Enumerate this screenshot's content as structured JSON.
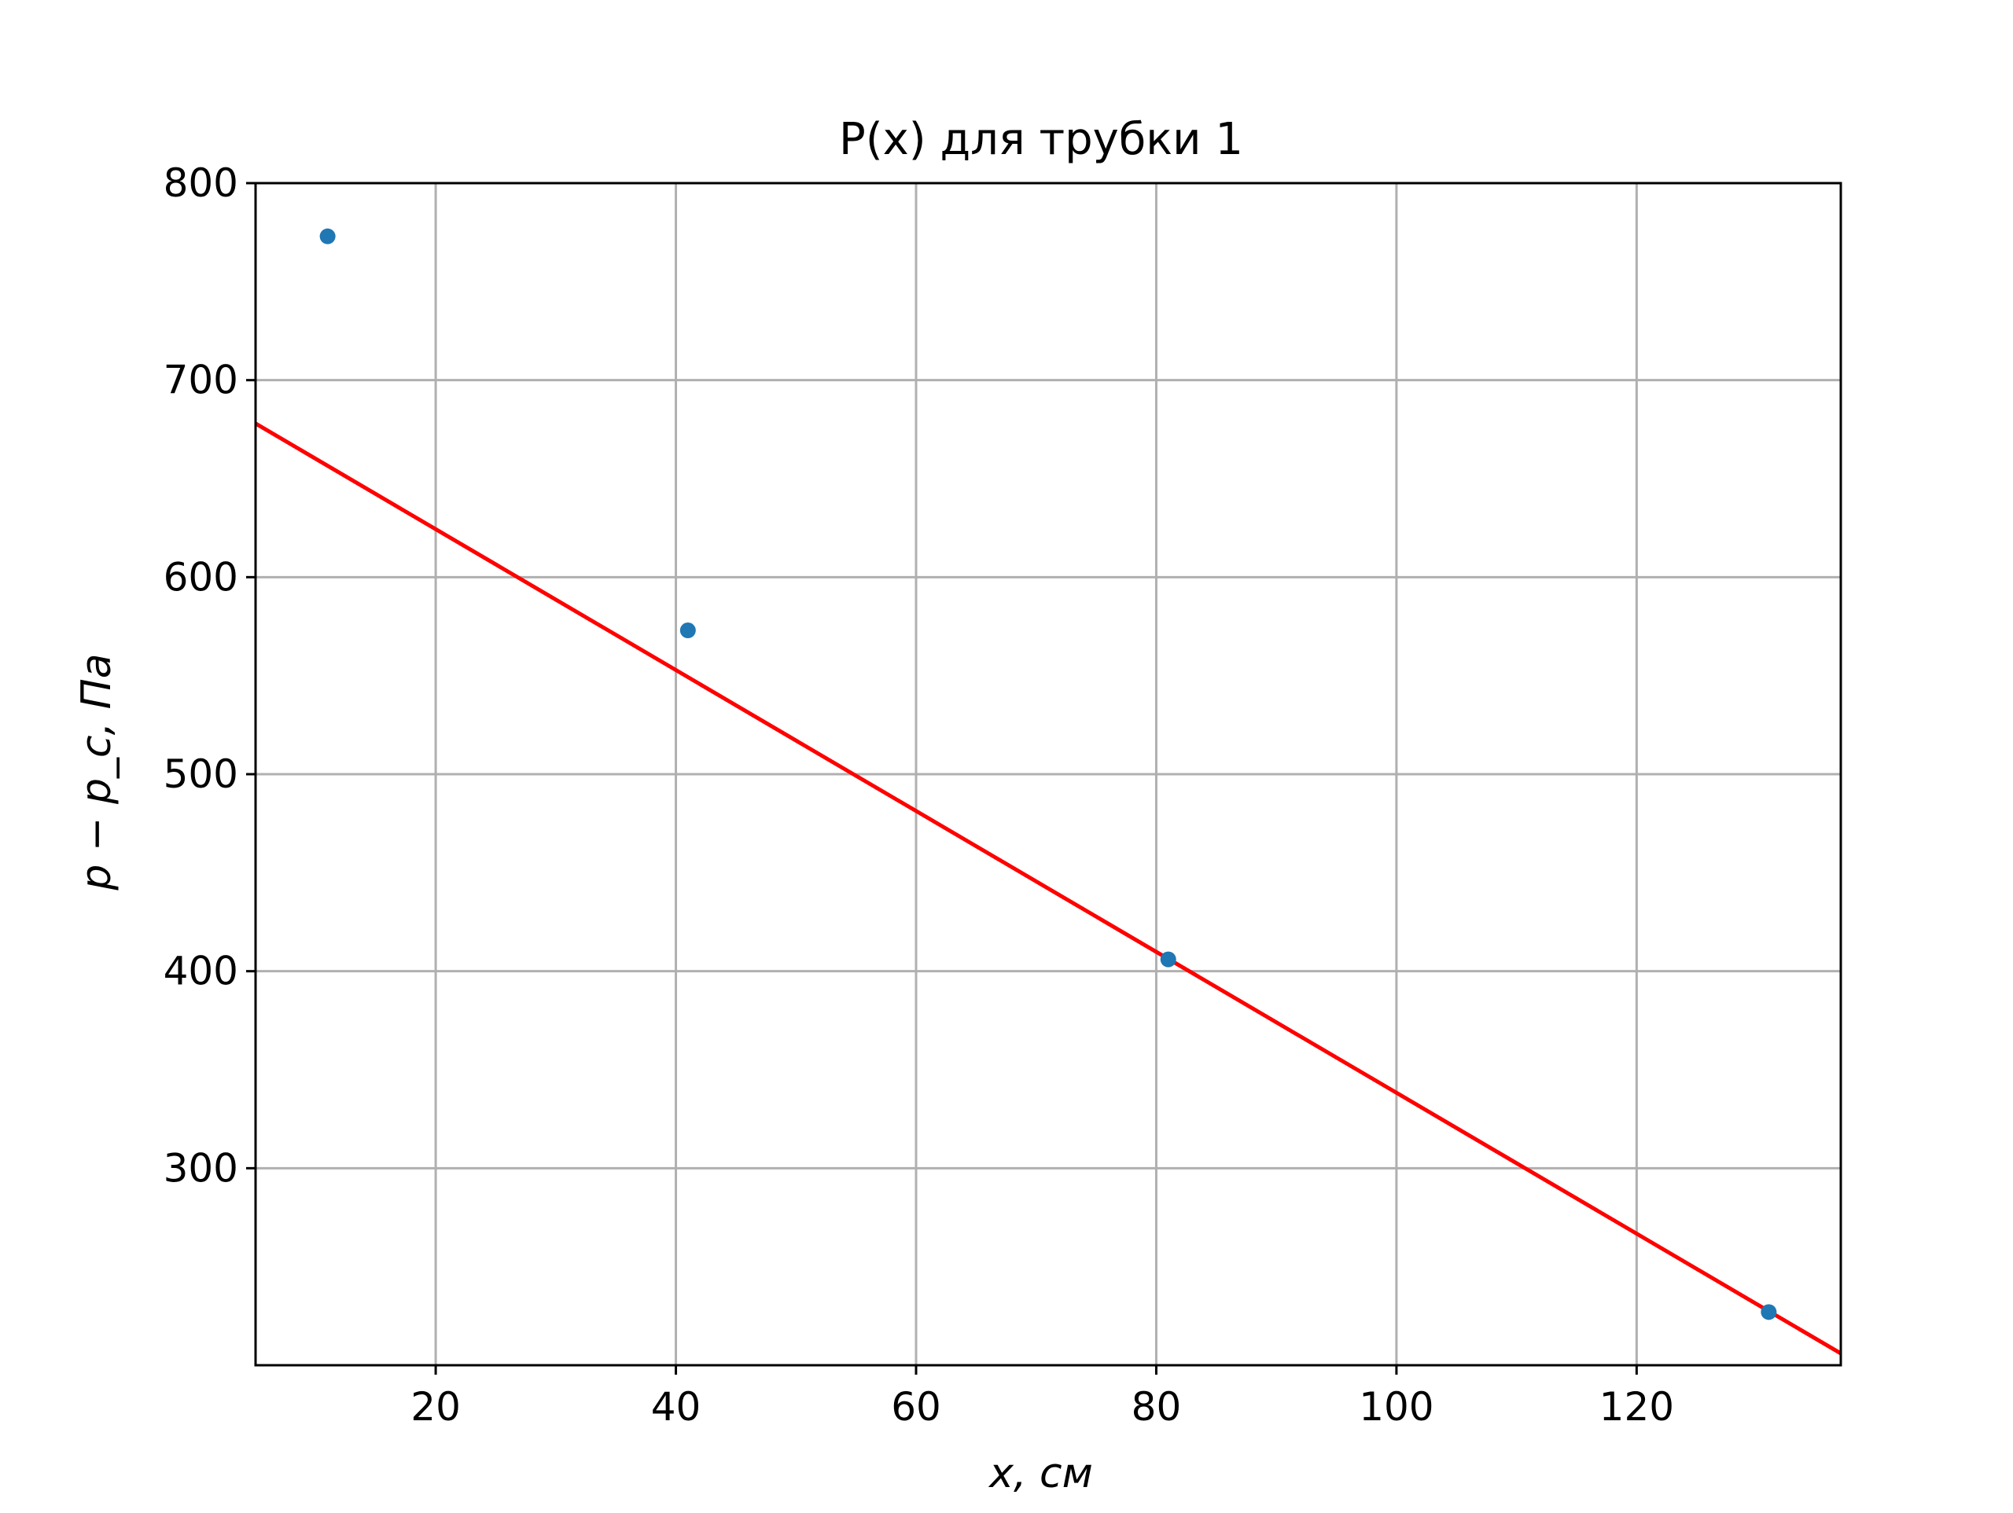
{
  "chart_data": {
    "type": "scatter",
    "title": "P(x) для трубки 1",
    "xlabel": "x, см",
    "ylabel": "p − p_c, Па",
    "xlim": [
      5,
      137
    ],
    "ylim": [
      200,
      800
    ],
    "x_ticks": [
      "20",
      "40",
      "60",
      "80",
      "100",
      "120"
    ],
    "y_ticks": [
      "300",
      "400",
      "500",
      "600",
      "700",
      "800"
    ],
    "grid": true,
    "series": [
      {
        "kind": "points",
        "x": [
          11,
          41,
          81,
          131
        ],
        "y": [
          773,
          573,
          406,
          227
        ],
        "color": "#1f77b4"
      },
      {
        "kind": "fit-line",
        "x": [
          5,
          137
        ],
        "y": [
          678,
          206
        ],
        "color": "#ff0000"
      }
    ]
  }
}
